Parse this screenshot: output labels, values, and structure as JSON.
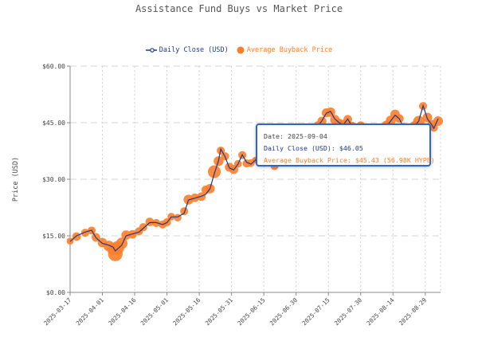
{
  "title": "Assistance Fund Buys vs Market Price",
  "legend": {
    "close_label": "Daily Close (USD)",
    "buyback_label": "Average Buyback Price"
  },
  "colors": {
    "close": "#1f3a8a",
    "buyback": "#fd7e2a",
    "tooltip_border": "#2e66c8"
  },
  "tooltip": {
    "date": "Date: 2025-09-04",
    "close": "Daily Close (USD): $46.05",
    "buyback": "Average Buyback Price: $45.43 (56.98K HYPE)"
  },
  "chart_data": {
    "type": "line+bubble",
    "title": "Assistance Fund Buys vs Market Price",
    "xlabel": "",
    "ylabel": "Price (USD)",
    "xlim": [
      "2025-03-17",
      "2025-09-04"
    ],
    "ylim": [
      0,
      60
    ],
    "yticks": [
      "$0.00",
      "$15.00",
      "$30.00",
      "$45.00",
      "$60.00"
    ],
    "ytick_values": [
      0,
      15,
      30,
      45,
      60
    ],
    "xticks": [
      "2025-03-17",
      "2025-04-01",
      "2025-04-16",
      "2025-05-01",
      "2025-05-16",
      "2025-05-31",
      "2025-06-15",
      "2025-06-30",
      "2025-07-15",
      "2025-07-30",
      "2025-08-14",
      "2025-08-29"
    ],
    "grid": true,
    "legend_position": "top",
    "series_fields": [
      "date",
      "daily_close_usd",
      "avg_buyback_price_usd",
      "hype_bought_k"
    ],
    "points": [
      [
        "2025-03-17",
        13.5,
        13.6,
        30
      ],
      [
        "2025-03-20",
        15.0,
        14.8,
        45
      ],
      [
        "2025-03-24",
        16.0,
        15.8,
        40
      ],
      [
        "2025-03-27",
        16.5,
        16.4,
        40
      ],
      [
        "2025-03-29",
        14.5,
        14.6,
        45
      ],
      [
        "2025-04-01",
        13.0,
        13.2,
        55
      ],
      [
        "2025-04-04",
        12.5,
        12.3,
        70
      ],
      [
        "2025-04-06",
        12.0,
        11.5,
        90
      ],
      [
        "2025-04-07",
        11.0,
        10.2,
        130
      ],
      [
        "2025-04-08",
        11.5,
        11.8,
        110
      ],
      [
        "2025-04-10",
        12.5,
        13.0,
        80
      ],
      [
        "2025-04-12",
        15.0,
        15.2,
        55
      ],
      [
        "2025-04-15",
        15.5,
        15.4,
        45
      ],
      [
        "2025-04-18",
        16.0,
        16.2,
        40
      ],
      [
        "2025-04-20",
        17.0,
        17.3,
        40
      ],
      [
        "2025-04-23",
        18.5,
        18.7,
        45
      ],
      [
        "2025-04-26",
        18.5,
        18.4,
        40
      ],
      [
        "2025-04-29",
        18.0,
        18.0,
        40
      ],
      [
        "2025-05-01",
        18.5,
        18.6,
        40
      ],
      [
        "2025-05-03",
        20.0,
        20.1,
        35
      ],
      [
        "2025-05-06",
        20.0,
        19.8,
        35
      ],
      [
        "2025-05-09",
        21.0,
        21.5,
        40
      ],
      [
        "2025-05-11",
        24.5,
        24.6,
        60
      ],
      [
        "2025-05-14",
        25.0,
        25.1,
        45
      ],
      [
        "2025-05-17",
        25.5,
        25.4,
        45
      ],
      [
        "2025-05-19",
        26.0,
        27.2,
        45
      ],
      [
        "2025-05-21",
        27.5,
        27.5,
        55
      ],
      [
        "2025-05-23",
        31.5,
        32.0,
        100
      ],
      [
        "2025-05-25",
        35.0,
        34.8,
        60
      ],
      [
        "2025-05-26",
        38.0,
        37.6,
        40
      ],
      [
        "2025-05-28",
        36.0,
        36.1,
        40
      ],
      [
        "2025-05-30",
        33.0,
        33.2,
        50
      ],
      [
        "2025-06-01",
        32.5,
        32.6,
        50
      ],
      [
        "2025-06-03",
        34.0,
        34.1,
        35
      ],
      [
        "2025-06-05",
        36.5,
        36.4,
        40
      ],
      [
        "2025-06-07",
        34.5,
        34.2,
        40
      ],
      [
        "2025-06-09",
        34.0,
        34.3,
        35
      ],
      [
        "2025-06-11",
        35.0,
        35.1,
        25
      ],
      [
        "2025-06-13",
        37.0,
        37.0,
        25
      ],
      [
        "2025-06-15",
        41.0,
        40.8,
        40
      ],
      [
        "2025-06-17",
        43.0,
        42.8,
        40
      ],
      [
        "2025-06-20",
        37.0,
        33.5,
        40
      ],
      [
        "2025-06-24",
        36.0,
        36.2,
        35
      ],
      [
        "2025-06-28",
        38.0,
        38.0,
        35
      ],
      [
        "2025-07-02",
        39.0,
        39.2,
        35
      ],
      [
        "2025-07-06",
        40.0,
        40.1,
        35
      ],
      [
        "2025-07-10",
        44.0,
        44.3,
        40
      ],
      [
        "2025-07-12",
        45.5,
        45.4,
        50
      ],
      [
        "2025-07-14",
        47.5,
        47.6,
        50
      ],
      [
        "2025-07-16",
        48.0,
        47.8,
        55
      ],
      [
        "2025-07-18",
        46.0,
        45.8,
        55
      ],
      [
        "2025-07-20",
        45.0,
        44.8,
        55
      ],
      [
        "2025-07-22",
        44.5,
        44.6,
        50
      ],
      [
        "2025-07-24",
        46.0,
        45.9,
        45
      ],
      [
        "2025-07-26",
        44.0,
        44.1,
        45
      ],
      [
        "2025-07-28",
        43.5,
        43.7,
        40
      ],
      [
        "2025-07-30",
        44.0,
        44.2,
        45
      ],
      [
        "2025-08-02",
        43.0,
        43.1,
        40
      ],
      [
        "2025-08-06",
        42.0,
        42.2,
        40
      ],
      [
        "2025-08-09",
        43.0,
        43.2,
        40
      ],
      [
        "2025-08-11",
        44.0,
        44.3,
        55
      ],
      [
        "2025-08-13",
        45.5,
        45.6,
        60
      ],
      [
        "2025-08-15",
        47.0,
        47.2,
        55
      ],
      [
        "2025-08-17",
        46.0,
        46.1,
        45
      ],
      [
        "2025-08-19",
        43.5,
        43.8,
        45
      ],
      [
        "2025-08-21",
        42.0,
        42.5,
        45
      ],
      [
        "2025-08-24",
        44.0,
        44.1,
        60
      ],
      [
        "2025-08-26",
        45.5,
        45.3,
        80
      ],
      [
        "2025-08-28",
        49.5,
        49.4,
        40
      ],
      [
        "2025-08-30",
        46.0,
        46.4,
        55
      ],
      [
        "2025-09-01",
        44.5,
        44.6,
        45
      ],
      [
        "2025-09-02",
        43.5,
        43.7,
        40
      ],
      [
        "2025-09-04",
        46.05,
        45.43,
        56.98
      ]
    ]
  }
}
